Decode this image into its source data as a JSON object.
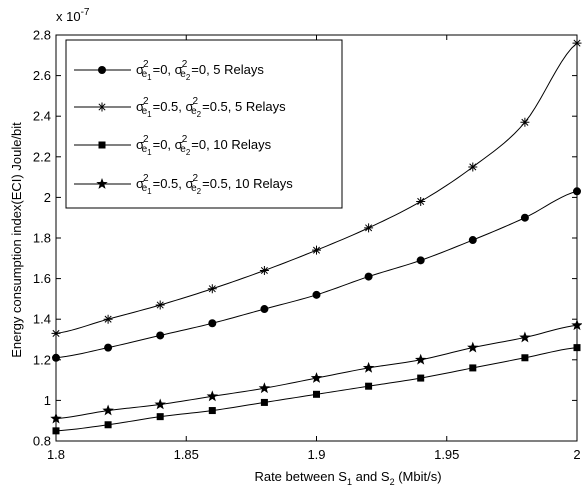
{
  "chart_data": {
    "type": "line",
    "xlabel": "Rate between S",
    "xlabel_sub1": "1",
    "xlabel_mid": " and S",
    "xlabel_sub2": "2",
    "xlabel_tail": " (Mbit/s)",
    "ylabel": "Energy consumption index(ECI) Joule/bit",
    "y_exponent_base": "x 10",
    "y_exponent_power": "-7",
    "xlim": [
      1.8,
      2.0
    ],
    "ylim": [
      0.8,
      2.8
    ],
    "x_ticks": [
      1.8,
      1.85,
      1.9,
      1.95,
      2.0
    ],
    "x_tick_labels": [
      "1.8",
      "1.85",
      "1.9",
      "1.95",
      "2"
    ],
    "y_ticks": [
      0.8,
      1.0,
      1.2,
      1.4,
      1.6,
      1.8,
      2.0,
      2.2,
      2.4,
      2.6,
      2.8
    ],
    "y_tick_labels": [
      "0.8",
      "1",
      "1.2",
      "1.4",
      "1.6",
      "1.8",
      "2",
      "2.2",
      "2.4",
      "2.6",
      "2.8"
    ],
    "grid": false,
    "legend_position": "top-left",
    "x": [
      1.8,
      1.82,
      1.84,
      1.86,
      1.88,
      1.9,
      1.92,
      1.94,
      1.96,
      1.98,
      2.0
    ],
    "series": [
      {
        "name": "σ²e1=0, σ²e2=0, 5 Relays",
        "legend_sigma_values": [
          "0",
          "0"
        ],
        "legend_suffix": ", 5 Relays",
        "marker": "circle",
        "values": [
          1.21,
          1.26,
          1.32,
          1.38,
          1.45,
          1.52,
          1.61,
          1.69,
          1.79,
          1.9,
          2.03
        ]
      },
      {
        "name": "σ²e1=0.5, σ²e2=0.5, 5 Relays",
        "legend_sigma_values": [
          "0.5",
          "0.5"
        ],
        "legend_suffix": ", 5 Relays",
        "marker": "asterisk",
        "values": [
          1.33,
          1.4,
          1.47,
          1.55,
          1.64,
          1.74,
          1.85,
          1.98,
          2.15,
          2.37,
          2.76
        ]
      },
      {
        "name": "σ²e1=0, σ²e2=0, 10 Relays",
        "legend_sigma_values": [
          "0",
          "0"
        ],
        "legend_suffix": ", 10 Relays",
        "marker": "square",
        "values": [
          0.85,
          0.88,
          0.92,
          0.95,
          0.99,
          1.03,
          1.07,
          1.11,
          1.16,
          1.21,
          1.26
        ]
      },
      {
        "name": "σ²e1=0.5, σ²e2=0.5, 10 Relays",
        "legend_sigma_values": [
          "0.5",
          "0.5"
        ],
        "legend_suffix": ", 10 Relays",
        "marker": "star",
        "values": [
          0.91,
          0.95,
          0.98,
          1.02,
          1.06,
          1.11,
          1.16,
          1.2,
          1.26,
          1.31,
          1.37
        ]
      }
    ]
  }
}
